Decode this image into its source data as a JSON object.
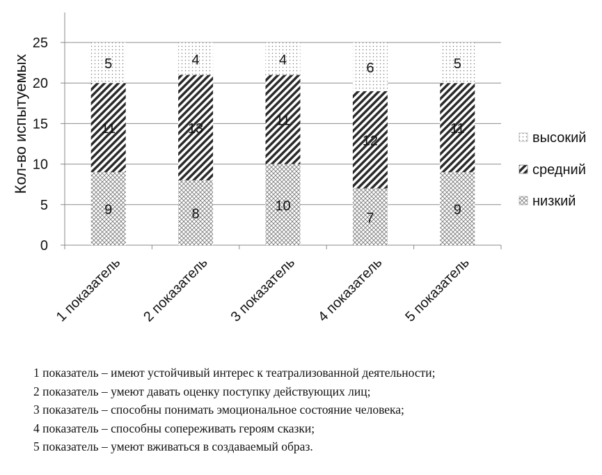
{
  "chart_data": {
    "type": "bar",
    "stacked": true,
    "categories": [
      "1 показатель",
      "2 показатель",
      "3 показатель",
      "4 показатель",
      "5 показатель"
    ],
    "series": [
      {
        "name": "низкий",
        "values": [
          9,
          8,
          10,
          7,
          9
        ],
        "pattern": "crosshatch"
      },
      {
        "name": "средний",
        "values": [
          11,
          13,
          11,
          12,
          11
        ],
        "pattern": "diagonal"
      },
      {
        "name": "высокий",
        "values": [
          5,
          4,
          4,
          6,
          5
        ],
        "pattern": "dots"
      }
    ],
    "ylabel": "Кол-во испытуемых",
    "xlabel": "",
    "ylim": [
      0,
      25
    ],
    "yticks": [
      0,
      5,
      10,
      15,
      20,
      25
    ],
    "grid": true,
    "legend_position": "right"
  },
  "legend": {
    "items": [
      "высокий",
      "средний",
      "низкий"
    ]
  },
  "notes": [
    "1 показатель – имеют устойчивый интерес к театрализованной деятельности;",
    "2 показатель – умеют давать оценку поступку действующих лиц;",
    "3 показатель – способны понимать эмоциональное состояние человека;",
    "4 показатель – способны сопереживать героям сказки;",
    "5 показатель – умеют вживаться в создаваемый образ."
  ]
}
